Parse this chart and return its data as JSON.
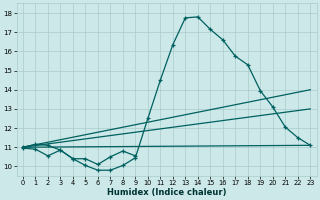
{
  "xlabel": "Humidex (Indice chaleur)",
  "bg_color": "#cce8e8",
  "grid_color": "#aacaca",
  "line_color": "#006060",
  "xlim": [
    -0.5,
    23.5
  ],
  "ylim": [
    9.5,
    18.5
  ],
  "xticks": [
    0,
    1,
    2,
    3,
    4,
    5,
    6,
    7,
    8,
    9,
    10,
    11,
    12,
    13,
    14,
    15,
    16,
    17,
    18,
    19,
    20,
    21,
    22,
    23
  ],
  "yticks": [
    10,
    11,
    12,
    13,
    14,
    15,
    16,
    17,
    18
  ],
  "curve_main": {
    "x": [
      0,
      1,
      2,
      3,
      4,
      5,
      6,
      7,
      8,
      9,
      10,
      11,
      12,
      13,
      14,
      15,
      16,
      17,
      18,
      19,
      20,
      21,
      22,
      23
    ],
    "y": [
      11.0,
      11.15,
      11.1,
      10.85,
      10.4,
      10.05,
      9.8,
      9.8,
      10.05,
      10.45,
      12.5,
      14.5,
      16.35,
      17.75,
      17.8,
      17.15,
      16.6,
      15.75,
      15.3,
      13.95,
      13.1,
      12.05,
      11.5,
      11.1
    ]
  },
  "curve_low": {
    "x": [
      0,
      1,
      2,
      3,
      4,
      5,
      6,
      7,
      8,
      9
    ],
    "y": [
      10.95,
      10.9,
      10.55,
      10.85,
      10.4,
      10.4,
      10.1,
      10.5,
      10.8,
      10.55
    ]
  },
  "line1": {
    "x": [
      0,
      23
    ],
    "y": [
      11.0,
      14.0
    ]
  },
  "line2": {
    "x": [
      0,
      23
    ],
    "y": [
      11.0,
      13.0
    ]
  },
  "line3": {
    "x": [
      0,
      23
    ],
    "y": [
      11.0,
      11.1
    ]
  }
}
